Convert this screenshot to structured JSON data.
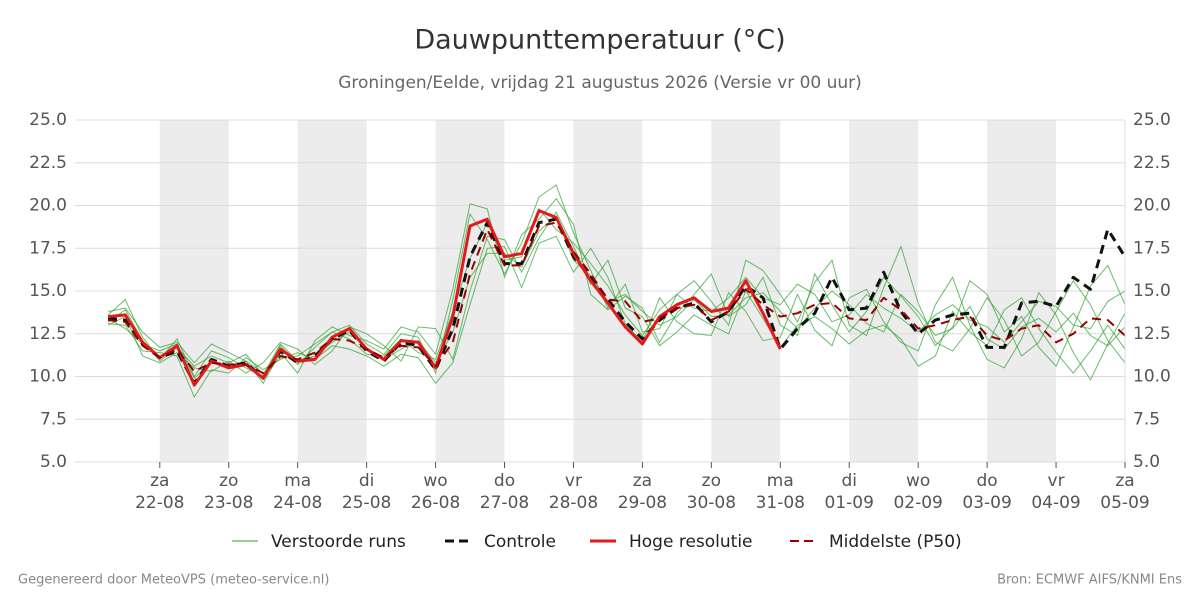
{
  "chart_data": {
    "type": "line",
    "title": "Dauwpunttemperatuur (°C)",
    "subtitle": "Groningen/Eelde, vrijdag 21 augustus 2026 (Versie vr 00 uur)",
    "x": [
      0.25,
      0.5,
      0.75,
      1,
      1.25,
      1.5,
      1.75,
      2,
      2.25,
      2.5,
      2.75,
      3,
      3.25,
      3.5,
      3.75,
      4,
      4.25,
      4.5,
      4.75,
      5,
      5.25,
      5.5,
      5.75,
      6,
      6.25,
      6.5,
      6.75,
      7,
      7.25,
      7.5,
      7.75,
      8,
      8.25,
      8.5,
      8.75,
      9,
      9.25,
      9.5,
      9.75,
      10,
      10.25,
      10.5,
      10.75,
      11,
      11.25,
      11.5,
      11.75,
      12,
      12.25,
      12.5,
      12.75,
      13,
      13.25,
      13.5,
      13.75,
      14,
      14.25,
      14.5,
      14.75,
      15
    ],
    "xlim": [
      -0.23,
      15
    ],
    "xticks": [
      {
        "value": 1,
        "label": [
          "za",
          "22-08"
        ]
      },
      {
        "value": 2,
        "label": [
          "zo",
          "23-08"
        ]
      },
      {
        "value": 3,
        "label": [
          "ma",
          "24-08"
        ]
      },
      {
        "value": 4,
        "label": [
          "di",
          "25-08"
        ]
      },
      {
        "value": 5,
        "label": [
          "wo",
          "26-08"
        ]
      },
      {
        "value": 6,
        "label": [
          "do",
          "27-08"
        ]
      },
      {
        "value": 7,
        "label": [
          "vr",
          "28-08"
        ]
      },
      {
        "value": 8,
        "label": [
          "za",
          "29-08"
        ]
      },
      {
        "value": 9,
        "label": [
          "zo",
          "30-08"
        ]
      },
      {
        "value": 10,
        "label": [
          "ma",
          "31-08"
        ]
      },
      {
        "value": 11,
        "label": [
          "di",
          "01-09"
        ]
      },
      {
        "value": 12,
        "label": [
          "wo",
          "02-09"
        ]
      },
      {
        "value": 13,
        "label": [
          "do",
          "03-09"
        ]
      },
      {
        "value": 14,
        "label": [
          "vr",
          "04-09"
        ]
      },
      {
        "value": 15,
        "label": [
          "za",
          "05-09"
        ]
      }
    ],
    "ylim": [
      5,
      25
    ],
    "yticks": [
      {
        "value": 5,
        "label": "5.0"
      },
      7.5,
      {
        "value": 10,
        "label": "10.0"
      },
      12.5,
      {
        "value": 15,
        "label": "15.0"
      },
      17.5,
      {
        "value": 20,
        "label": "20.0"
      },
      22.5,
      {
        "value": 25,
        "label": "25.0"
      }
    ],
    "grid": true,
    "ensemble": {
      "name": "Verstoorde runs",
      "color": "#2ca02c",
      "members": [
        [
          13.6,
          14.5,
          12.3,
          11.0,
          12.2,
          10.0,
          11.5,
          11.1,
          10.5,
          10.0,
          11.8,
          10.7,
          11.7,
          12.6,
          13.0,
          11.9,
          11.3,
          12.5,
          12.3,
          10.2,
          14.5,
          19.5,
          18.0,
          16.0,
          17.8,
          20.5,
          21.2,
          18.4,
          16.2,
          14.0,
          15.4,
          12.6,
          12.8,
          14.8,
          15.6,
          14.4,
          13.0,
          16.8,
          16.2,
          14.8,
          13.2,
          15.5,
          16.8,
          13.0,
          12.4,
          15.2,
          17.6,
          14.3,
          12.0,
          11.5,
          12.8,
          14.6,
          13.3,
          11.2,
          12.0,
          13.8,
          15.6,
          14.2,
          12.1,
          10.8
        ],
        [
          13.1,
          13.0,
          11.5,
          11.4,
          11.2,
          8.8,
          10.4,
          10.2,
          11.1,
          10.4,
          11.0,
          11.4,
          11.0,
          11.8,
          11.6,
          11.2,
          10.6,
          11.3,
          11.1,
          9.6,
          10.8,
          14.2,
          17.5,
          17.6,
          15.2,
          17.8,
          18.2,
          16.1,
          17.5,
          15.8,
          13.1,
          12.0,
          14.6,
          13.2,
          12.5,
          12.4,
          14.9,
          13.8,
          12.1,
          12.3,
          14.8,
          12.7,
          11.8,
          14.6,
          15.1,
          13.2,
          12.0,
          11.5,
          14.2,
          15.8,
          13.0,
          11.0,
          10.5,
          12.2,
          14.9,
          13.6,
          11.4,
          9.8,
          11.9,
          13.7
        ],
        [
          13.8,
          14.0,
          12.6,
          11.7,
          12.0,
          10.8,
          11.9,
          11.4,
          10.9,
          9.6,
          11.4,
          10.2,
          12.1,
          12.9,
          12.4,
          12.1,
          11.6,
          12.9,
          12.6,
          11.3,
          15.1,
          20.1,
          19.8,
          15.8,
          18.3,
          19.2,
          20.4,
          18.9,
          14.8,
          13.9,
          14.7,
          14.0,
          12.0,
          13.7,
          14.8,
          16.0,
          13.5,
          14.2,
          15.8,
          13.0,
          12.4,
          16.0,
          14.2,
          12.6,
          13.8,
          15.8,
          14.7,
          13.5,
          11.8,
          12.9,
          15.6,
          14.8,
          12.6,
          13.5,
          11.7,
          10.6,
          12.9,
          15.3,
          16.5,
          14.2
        ],
        [
          13.0,
          13.5,
          11.2,
          10.8,
          11.4,
          10.5,
          10.3,
          10.9,
          10.2,
          10.8,
          12.0,
          11.6,
          10.7,
          11.5,
          12.9,
          12.5,
          11.8,
          10.9,
          12.9,
          12.8,
          11.0,
          15.0,
          18.2,
          18.0,
          16.1,
          18.1,
          19.6,
          17.6,
          15.4,
          16.8,
          14.0,
          13.5,
          11.8,
          12.6,
          13.6,
          13.0,
          12.5,
          15.0,
          13.4,
          11.7,
          13.0,
          13.5,
          12.8,
          11.9,
          12.7,
          13.0,
          12.2,
          10.6,
          11.2,
          13.8,
          12.6,
          11.8,
          13.9,
          14.6,
          12.8,
          11.4,
          10.2,
          11.5,
          13.0,
          11.6
        ],
        [
          13.4,
          12.8,
          11.9,
          11.5,
          11.9,
          9.9,
          10.8,
          10.5,
          10.9,
          10.2,
          11.1,
          11.2,
          11.9,
          12.6,
          12.2,
          11.3,
          11.2,
          12.2,
          11.4,
          11.0,
          13.8,
          16.9,
          19.0,
          16.8,
          17.0,
          19.8,
          18.6,
          17.8,
          16.6,
          15.3,
          13.6,
          12.4,
          13.9,
          14.8,
          14.0,
          13.8,
          14.6,
          15.8,
          14.6,
          14.2,
          15.4,
          14.8,
          13.2,
          13.6,
          14.8,
          14.0,
          13.4,
          12.6,
          13.6,
          14.2,
          13.3,
          12.9,
          12.0,
          13.2,
          14.4,
          14.1,
          13.0,
          12.8,
          14.4,
          15.0
        ],
        [
          13.2,
          13.9,
          12.1,
          10.9,
          11.7,
          10.6,
          11.2,
          10.8,
          11.3,
          10.1,
          11.9,
          10.9,
          11.2,
          12.0,
          12.6,
          11.6,
          11.0,
          11.6,
          12.1,
          10.8,
          12.6,
          15.8,
          17.2,
          17.2,
          16.4,
          18.5,
          19.4,
          16.8,
          15.9,
          14.4,
          14.8,
          13.8,
          13.0,
          13.5,
          14.5,
          13.5,
          13.6,
          14.6,
          14.9,
          13.8,
          12.8,
          14.0,
          15.0,
          14.2,
          13.1,
          12.6,
          14.8,
          13.8,
          12.4,
          12.8,
          14.1,
          12.2,
          11.6,
          12.9,
          13.4,
          12.6,
          13.7,
          12.4,
          11.8,
          12.9
        ]
      ]
    },
    "series": [
      {
        "name": "Controle",
        "color": "#111111",
        "dash": true,
        "width": 3,
        "values": [
          13.4,
          13.3,
          11.9,
          11.1,
          11.5,
          9.6,
          11.0,
          10.6,
          10.8,
          9.9,
          11.5,
          10.8,
          11.2,
          12.2,
          12.7,
          11.5,
          10.9,
          12.0,
          11.8,
          10.4,
          12.8,
          17.0,
          19.0,
          16.6,
          16.6,
          19.0,
          19.2,
          17.0,
          15.8,
          14.5,
          13.2,
          12.2,
          13.3,
          14.0,
          14.3,
          13.2,
          13.8,
          15.3,
          14.6,
          11.6,
          12.8,
          13.7,
          15.8,
          13.9,
          14.0,
          16.1,
          13.8,
          12.5,
          13.3,
          13.6,
          13.7,
          11.7,
          11.7,
          14.3,
          14.4,
          14.1,
          15.8,
          15.1,
          18.6,
          17.0
        ]
      },
      {
        "name": "Hoge resolutie",
        "color": "#e31a1c",
        "dash": false,
        "width": 3,
        "values": [
          13.5,
          13.6,
          12.0,
          11.1,
          11.8,
          9.5,
          10.9,
          10.5,
          10.7,
          9.9,
          11.6,
          10.9,
          11.0,
          12.3,
          12.8,
          11.6,
          11.0,
          12.1,
          12.0,
          10.5,
          13.5,
          18.8,
          19.2,
          17.0,
          17.2,
          19.7,
          19.3,
          17.2,
          15.6,
          14.3,
          12.9,
          11.9,
          13.5,
          14.2,
          14.6,
          13.8,
          14.0,
          15.6,
          13.7,
          11.6,
          null,
          null,
          null,
          null,
          null,
          null,
          null,
          null,
          null,
          null,
          null,
          null,
          null,
          null,
          null,
          null,
          null,
          null,
          null,
          null
        ]
      },
      {
        "name": "Middelste (P50)",
        "color": "#990000",
        "dash": true,
        "width": 2,
        "values": [
          13.3,
          13.2,
          11.8,
          11.1,
          11.6,
          10.3,
          10.8,
          10.7,
          10.7,
          10.2,
          11.2,
          11.0,
          11.4,
          12.2,
          12.1,
          11.6,
          11.1,
          11.8,
          11.7,
          10.6,
          12.0,
          16.0,
          18.6,
          16.5,
          16.5,
          18.8,
          19.0,
          17.3,
          16.0,
          14.5,
          14.4,
          13.2,
          13.4,
          14.0,
          14.2,
          13.3,
          13.8,
          15.1,
          14.2,
          13.5,
          13.7,
          14.2,
          14.3,
          13.4,
          13.3,
          14.6,
          13.9,
          12.8,
          13.0,
          13.3,
          13.5,
          12.4,
          12.1,
          12.8,
          13.0,
          12.0,
          12.5,
          13.4,
          13.3,
          12.4
        ]
      }
    ],
    "footer_left": "Gegenereerd door MeteoVPS (meteo-service.nl)",
    "footer_right": "Bron: ECMWF AIFS/KNMI Ens"
  }
}
